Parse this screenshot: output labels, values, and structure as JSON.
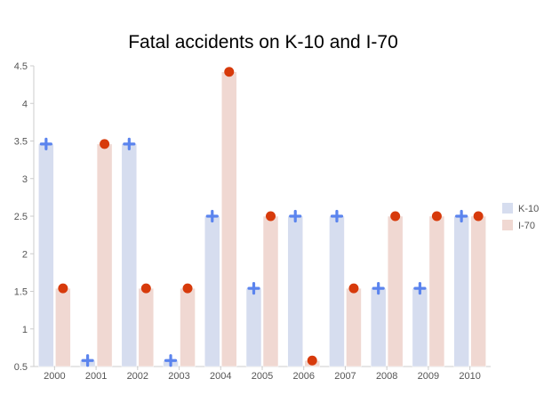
{
  "chart_data": {
    "type": "bar",
    "title": "Fatal accidents on K-10 and I-70",
    "xlabel": "",
    "ylabel": "",
    "categories": [
      "2000",
      "2001",
      "2002",
      "2003",
      "2004",
      "2005",
      "2006",
      "2007",
      "2008",
      "2009",
      "2010"
    ],
    "ylim": [
      0.5,
      4.5
    ],
    "yticks": [
      "0.5",
      "1",
      "1.5",
      "2",
      "2.5",
      "3",
      "3.5",
      "4",
      "4.5"
    ],
    "grid": false,
    "legend_position": "right",
    "series": [
      {
        "name": "K-10",
        "values": [
          3.46,
          0.58,
          3.46,
          0.58,
          2.5,
          1.54,
          2.5,
          2.5,
          1.54,
          1.54,
          2.5
        ],
        "bar_color": "#d6ddef",
        "marker": "plus",
        "marker_color": "#5b84ee"
      },
      {
        "name": "I-70",
        "values": [
          1.54,
          3.46,
          1.54,
          1.54,
          4.42,
          2.5,
          0.58,
          1.54,
          2.5,
          2.5,
          2.5
        ],
        "bar_color": "#f0d8d2",
        "marker": "circle",
        "marker_color": "#d73a0b"
      }
    ]
  }
}
